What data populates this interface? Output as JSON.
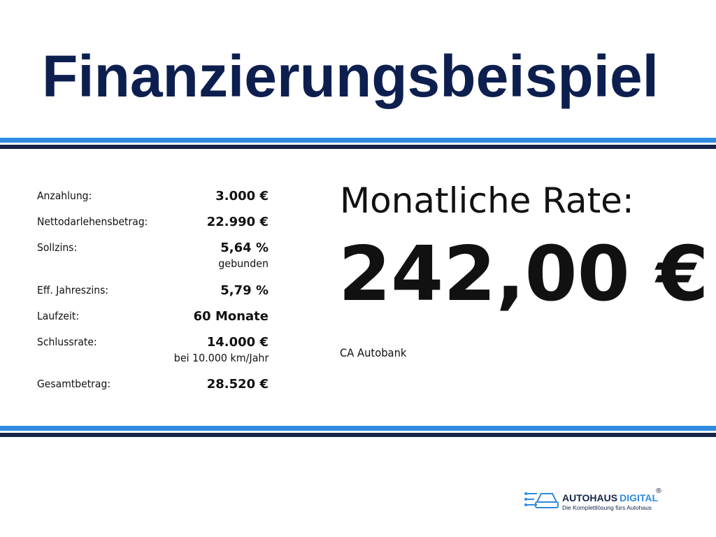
{
  "header": {
    "title": "Finanzierungsbeispiel"
  },
  "details": {
    "rows": [
      {
        "label": "Anzahlung:",
        "value": "3.000 €"
      },
      {
        "label": "Nettodarlehensbetrag:",
        "value": "22.990 €"
      },
      {
        "label": "Sollzins:",
        "value": "5,64 %",
        "note": "gebunden"
      },
      {
        "label": "Eff. Jahreszins:",
        "value": "5,79 %"
      },
      {
        "label": "Laufzeit:",
        "value": "60 Monate"
      },
      {
        "label": "Schlussrate:",
        "value": "14.000 €",
        "note": "bei 10.000 km/Jahr"
      },
      {
        "label": "Gesamtbetrag:",
        "value": "28.520 €"
      }
    ]
  },
  "rate": {
    "label": "Monatliche Rate:",
    "amount": "242,00 €",
    "bank": "CA Autobank"
  },
  "logo": {
    "name_dark": "AUTOHAUS",
    "name_blue": "DIGITAL",
    "registered": "®",
    "tagline": "Die Komplettlösung fürs Autohaus"
  }
}
